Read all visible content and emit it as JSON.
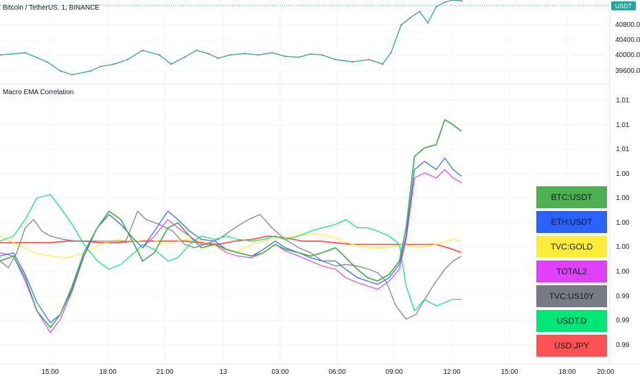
{
  "header": {
    "title": "Bitcoin / TetherUS, 1, BINANCE",
    "currency_badge": "USDT"
  },
  "indicator": {
    "title": "Macro EMA Correlation"
  },
  "price_axis": {
    "labels": [
      "40800.00",
      "40400.00",
      "40000.00",
      "39600.00"
    ]
  },
  "corr_axis": {
    "labels": [
      "1.01",
      "1.01",
      "1.01",
      "1.00",
      "1.00",
      "1.00",
      "1.00",
      "1.00",
      "0.99",
      "0.99",
      "0.99"
    ]
  },
  "time_axis": {
    "labels": [
      "15:00",
      "18:00",
      "21:00",
      "13",
      "03:00",
      "06:00",
      "09:00",
      "12:00",
      "15:00",
      "18:00",
      "20:00"
    ]
  },
  "legend": [
    {
      "label": "BTC:USDT",
      "color": "#4caf50"
    },
    {
      "label": "ETH:USDT",
      "color": "#2962ff"
    },
    {
      "label": "TVC:GOLD",
      "color": "#ffeb3b"
    },
    {
      "label": "TOTAL2",
      "color": "#e040fb"
    },
    {
      "label": "TVC:US10Y",
      "color": "#787b86"
    },
    {
      "label": "USDT.D",
      "color": "#00e676"
    },
    {
      "label": "USD:JPY",
      "color": "#ff5252"
    }
  ],
  "chart_data": [
    {
      "type": "line",
      "title": "Bitcoin / TetherUS, 1, BINANCE",
      "x_labels": [
        "15:00",
        "18:00",
        "21:00",
        "13",
        "03:00",
        "06:00",
        "09:00",
        "12:00"
      ],
      "series": [
        {
          "name": "BTC:USDT",
          "x": [
            0,
            1.5,
            2.8,
            3.6,
            4.3,
            5.4,
            6.0,
            6.8,
            7.6,
            8.5,
            9.5,
            10.2,
            11.0,
            11.7,
            12.4,
            13.0,
            13.7,
            14.6,
            15.4,
            16.2,
            17.0,
            17.8,
            18.5,
            19.2,
            20.0,
            21.0,
            22.0,
            22.8,
            23.3,
            23.9,
            24.4,
            25.0,
            25.5,
            26.0,
            26.5,
            27.0,
            27.5
          ],
          "y": [
            40050,
            40100,
            39900,
            39700,
            39620,
            39700,
            39800,
            39850,
            39950,
            40150,
            40050,
            39850,
            40000,
            40150,
            40080,
            39980,
            40050,
            40080,
            40050,
            40100,
            40020,
            40000,
            40070,
            40050,
            39950,
            39900,
            39950,
            39850,
            40100,
            40700,
            40850,
            41000,
            40750,
            41100,
            41200,
            41250,
            41230
          ]
        }
      ],
      "ylim": [
        39450,
        41250
      ]
    },
    {
      "type": "line",
      "title": "Macro EMA Correlation",
      "x_labels": [
        "15:00",
        "18:00",
        "21:00",
        "13",
        "03:00",
        "06:00",
        "09:00",
        "12:00",
        "15:00",
        "18:00",
        "20:00"
      ],
      "series": [
        {
          "name": "BTC:USDT",
          "x": [
            0,
            0.8,
            1.5,
            2.2,
            3.0,
            3.6,
            4.3,
            5.0,
            5.8,
            6.5,
            7.2,
            8.0,
            8.5,
            9.2,
            10.0,
            10.6,
            11.3,
            12.0,
            12.8,
            13.5,
            14.2,
            15.0,
            15.7,
            16.4,
            17.0,
            17.8,
            18.5,
            19.2,
            20.0,
            20.6,
            21.3,
            21.9,
            22.5,
            23.2,
            23.8,
            24.2,
            24.7,
            25.3,
            26.0,
            26.5,
            27.0,
            27.5
          ],
          "y": [
            0.999,
            0.9993,
            0.998,
            0.996,
            0.995,
            0.9958,
            0.9975,
            0.9995,
            1.001,
            1.002,
            1.0015,
            1.0,
            0.999,
            0.9995,
            1.001,
            1.0013,
            1.0005,
            0.9998,
            1.0,
            0.9997,
            0.9995,
            0.9993,
            0.9995,
            1.0,
            0.9997,
            0.9995,
            0.9993,
            0.9995,
            0.9998,
            0.9992,
            0.9985,
            0.998,
            0.9978,
            0.9982,
            0.999,
            1.001,
            1.0053,
            1.0058,
            1.006,
            1.0075,
            1.0072,
            1.0068
          ]
        },
        {
          "name": "ETH:USDT",
          "x": [
            0,
            0.8,
            1.5,
            2.2,
            3.0,
            3.6,
            4.3,
            5.0,
            5.8,
            6.5,
            7.2,
            8.0,
            8.5,
            9.2,
            10.0,
            10.6,
            11.3,
            12.0,
            12.8,
            13.5,
            14.2,
            15.0,
            15.7,
            16.4,
            17.0,
            17.8,
            18.5,
            19.2,
            20.0,
            20.6,
            21.3,
            21.9,
            22.5,
            23.2,
            23.8,
            24.2,
            24.7,
            25.3,
            26.0,
            26.5,
            27.0,
            27.5
          ],
          "y": [
            0.9993,
            0.9995,
            0.9982,
            0.9965,
            0.9953,
            0.9958,
            0.9973,
            0.9993,
            1.001,
            1.0018,
            1.0012,
            1.0003,
            0.9998,
            1.0008,
            1.002,
            1.0015,
            1.0008,
            1.0003,
            1.0002,
            0.9997,
            0.9995,
            0.9993,
            0.9997,
            1.0002,
            0.9998,
            0.9995,
            0.9992,
            0.999,
            0.999,
            0.9985,
            0.998,
            0.9978,
            0.9976,
            0.998,
            0.9988,
            1.0005,
            1.0045,
            1.005,
            1.0045,
            1.0052,
            1.0045,
            1.0041
          ]
        },
        {
          "name": "TVC:GOLD",
          "x": [
            0,
            1.0,
            2.0,
            3.0,
            4.0,
            5.0,
            6.0,
            7.0,
            8.0,
            9.0,
            10.0,
            11.0,
            12.0,
            13.0,
            14.0,
            15.0,
            16.0,
            17.0,
            18.0,
            19.0,
            20.0,
            21.0,
            22.0,
            23.0,
            24.0,
            25.0,
            26.0,
            27.0,
            27.5
          ],
          "y": [
            1.0005,
            1.0,
            0.9995,
            0.9993,
            0.9992,
            0.9995,
            1.0,
            1.0003,
            1.0002,
            1.0003,
            1.0,
            1.0003,
            1.0002,
            0.9998,
            0.9995,
            1.0,
            1.0003,
            1.0004,
            1.0006,
            1.0006,
            1.0004,
            1.0,
            0.9998,
            0.9998,
            1.0,
            0.9998,
            1.0,
            1.0003,
            1.0002
          ]
        },
        {
          "name": "TOTAL2",
          "x": [
            0,
            0.8,
            1.5,
            2.2,
            3.0,
            3.6,
            4.3,
            5.0,
            5.8,
            6.5,
            7.2,
            8.0,
            8.5,
            9.2,
            10.0,
            10.6,
            11.3,
            12.0,
            12.8,
            13.5,
            14.2,
            15.0,
            15.7,
            16.4,
            17.0,
            17.8,
            18.5,
            19.2,
            20.0,
            20.6,
            21.3,
            21.9,
            22.5,
            23.2,
            23.8,
            24.2,
            24.7,
            25.3,
            26.0,
            26.5,
            27.0,
            27.5
          ],
          "y": [
            0.9995,
            0.9993,
            0.9978,
            0.996,
            0.9947,
            0.9955,
            0.9972,
            0.9993,
            1.001,
            1.0018,
            1.0012,
            1.0003,
            0.9998,
            1.0005,
            1.0015,
            1.001,
            1.0005,
            1.0,
            1.0,
            0.9995,
            0.9993,
            0.9992,
            0.9995,
            1.0,
            0.9996,
            0.9993,
            0.999,
            0.9987,
            0.9985,
            0.998,
            0.9977,
            0.9975,
            0.9973,
            0.9978,
            0.9985,
            1.0003,
            1.004,
            1.0043,
            1.004,
            1.0045,
            1.004,
            1.0037
          ]
        },
        {
          "name": "TVC:US10Y",
          "x": [
            0,
            0.5,
            1.0,
            1.5,
            2.0,
            2.5,
            3.0,
            3.8,
            4.5,
            5.5,
            6.5,
            7.5,
            8.2,
            8.7,
            9.5,
            10.3,
            11.0,
            11.6,
            12.2,
            13.0,
            14.0,
            14.8,
            15.5,
            16.2,
            17.0,
            17.8,
            18.5,
            19.2,
            20.0,
            20.6,
            21.3,
            22.0,
            22.5,
            23.0,
            23.6,
            24.2,
            24.8,
            25.2,
            25.8,
            26.5,
            27.0,
            27.5
          ],
          "y": [
            0.999,
            0.9986,
            0.9995,
            1.001,
            1.0015,
            1.0008,
            1.0005,
            1.0003,
            1.0002,
            1.0002,
            1.0002,
            1.0002,
            1.002,
            1.0015,
            1.0012,
            1.0008,
            1.0,
            0.9998,
            1.0,
            1.0003,
            1.001,
            1.0015,
            1.0018,
            1.001,
            1.0003,
            0.9998,
            0.9995,
            0.999,
            0.9987,
            0.9988,
            0.9987,
            0.9985,
            0.9983,
            0.9978,
            0.9963,
            0.9955,
            0.9958,
            0.9965,
            0.9975,
            0.9985,
            0.999,
            0.9993
          ]
        },
        {
          "name": "USDT.D",
          "x": [
            0,
            0.8,
            1.5,
            2.2,
            3.0,
            3.6,
            4.3,
            5.0,
            5.8,
            6.5,
            7.2,
            8.0,
            8.5,
            9.2,
            10.0,
            10.6,
            11.3,
            12.0,
            12.8,
            13.5,
            14.2,
            15.0,
            15.7,
            16.4,
            17.0,
            17.8,
            18.5,
            19.2,
            20.0,
            20.6,
            21.3,
            21.9,
            22.5,
            23.2,
            23.8,
            24.2,
            24.7,
            25.3,
            26.0,
            26.5,
            27.0,
            27.5
          ],
          "y": [
            1.0002,
            1.0005,
            1.0015,
            1.0028,
            1.003,
            1.0022,
            1.0012,
            1.0,
            0.999,
            0.9985,
            0.9988,
            0.9995,
            1.0,
            0.9997,
            0.999,
            0.9992,
            1.0,
            1.0005,
            1.0003,
            1.0005,
            1.0003,
            1.0002,
            1.0003,
            1.0005,
            1.0003,
            1.0005,
            1.0008,
            1.001,
            1.0012,
            1.0015,
            1.001,
            1.001,
            1.0008,
            1.0005,
            1.0,
            0.9975,
            0.996,
            0.9967,
            0.9963,
            0.9965,
            0.9967,
            0.9967
          ]
        },
        {
          "name": "USD:JPY",
          "x": [
            0,
            1.0,
            2.0,
            3.0,
            4.0,
            5.0,
            6.0,
            7.0,
            8.0,
            9.0,
            10.0,
            11.0,
            12.0,
            13.0,
            14.0,
            15.0,
            16.0,
            17.0,
            18.0,
            19.0,
            20.0,
            21.0,
            22.0,
            23.0,
            24.0,
            25.0,
            26.0,
            27.0,
            27.5
          ],
          "y": [
            1.0001,
            1.0001,
            1.0001,
            1.0001,
            1.0002,
            1.0002,
            1.0001,
            1.0001,
            1.0002,
            1.0002,
            1.0002,
            1.0002,
            1.0001,
            1.0,
            1.0002,
            1.0003,
            1.0005,
            1.0004,
            1.0002,
            1.0002,
            1.0001,
            1.0,
            1.0,
            1.0,
            1.0,
            1.0,
            1.0,
            0.9997,
            0.9995
          ]
        }
      ],
      "ylim": [
        0.993,
        1.0085
      ]
    }
  ]
}
